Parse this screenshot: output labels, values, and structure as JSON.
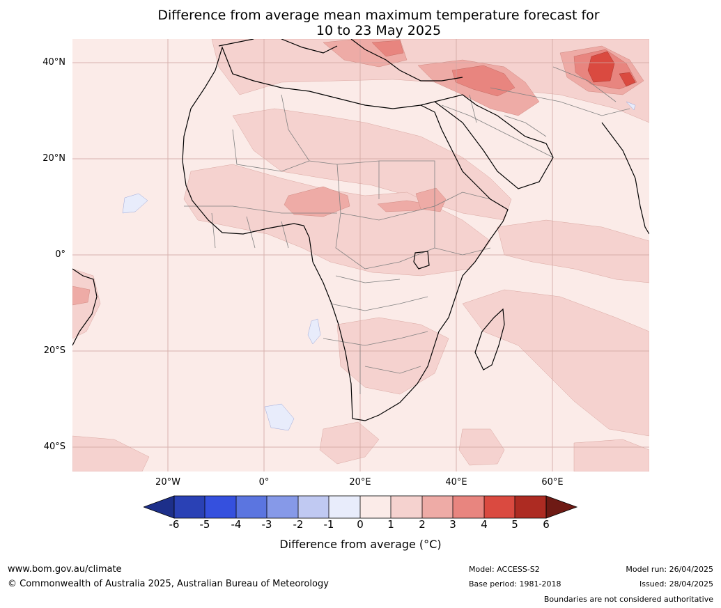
{
  "title_line1": "Difference from average mean maximum temperature forecast for",
  "title_line2": "10 to 23 May 2025",
  "map": {
    "lat_labels": [
      "40°N",
      "20°N",
      "0°",
      "20°S",
      "40°S"
    ],
    "lon_labels": [
      "20°W",
      "0°",
      "20°E",
      "40°E",
      "60°E"
    ],
    "background_color": "#fbebe8"
  },
  "colorbar": {
    "title": "Difference from average (°C)",
    "ticks": [
      "-6",
      "-5",
      "-4",
      "-3",
      "-2",
      "-1",
      "0",
      "1",
      "2",
      "3",
      "4",
      "5",
      "6"
    ],
    "colors": [
      "#1d2f8a",
      "#2a41b5",
      "#3550de",
      "#5b75e0",
      "#8699e8",
      "#c0c9f2",
      "#e8ecfb",
      "#fbebe8",
      "#f5d2cf",
      "#eeaba6",
      "#e8857f",
      "#da4a40",
      "#ad2b22",
      "#6e1a14"
    ]
  },
  "footer": {
    "url": "www.bom.gov.au/climate",
    "copyright": "© Commonwealth of Australia 2025, Australian Bureau of Meteorology",
    "model": "Model: ACCESS-S2",
    "base_period": "Base period: 1981-2018",
    "model_run": "Model run: 26/04/2025",
    "issued": "Issued: 28/04/2025",
    "disclaimer": "Boundaries are not considered authoritative"
  }
}
